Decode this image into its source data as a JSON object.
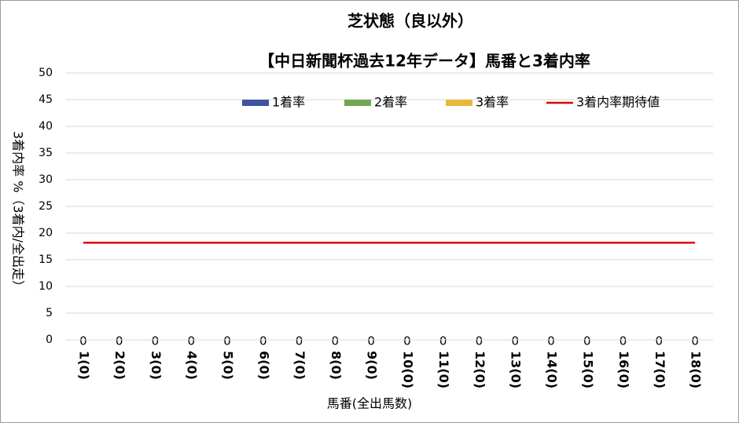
{
  "chart_data": {
    "type": "bar",
    "stacked": true,
    "title": "芝状態（良以外）",
    "subtitle": "【中日新聞杯過去12年データ】馬番と3着内率",
    "x_label": "馬番(全出馬数)",
    "y_label": "3着内率 %（3着内/全出走）",
    "categories": [
      "1(0)",
      "2(0)",
      "3(0)",
      "4(0)",
      "5(0)",
      "6(0)",
      "7(0)",
      "8(0)",
      "9(0)",
      "10(0)",
      "11(0)",
      "12(0)",
      "13(0)",
      "14(0)",
      "15(0)",
      "16(0)",
      "17(0)",
      "18(0)"
    ],
    "series": [
      {
        "name": "1着率",
        "color": "#3f51a3",
        "values": [
          0,
          0,
          0,
          0,
          0,
          0,
          0,
          0,
          0,
          0,
          0,
          0,
          0,
          0,
          0,
          0,
          0,
          0
        ]
      },
      {
        "name": "2着率",
        "color": "#70a850",
        "values": [
          0,
          0,
          0,
          0,
          0,
          0,
          0,
          0,
          0,
          0,
          0,
          0,
          0,
          0,
          0,
          0,
          0,
          0
        ]
      },
      {
        "name": "3着率",
        "color": "#e8b83a",
        "values": [
          0,
          0,
          0,
          0,
          0,
          0,
          0,
          0,
          0,
          0,
          0,
          0,
          0,
          0,
          0,
          0,
          0,
          0
        ]
      },
      {
        "name": "3着内率期待値",
        "color": "#e00000",
        "type": "line",
        "values": [
          18.2,
          18.2,
          18.2,
          18.2,
          18.2,
          18.2,
          18.2,
          18.2,
          18.2,
          18.2,
          18.2,
          18.2,
          18.2,
          18.2,
          18.2,
          18.2,
          18.2,
          18.2
        ]
      }
    ],
    "ylim": [
      0,
      50
    ],
    "yticks": [
      0,
      5,
      10,
      15,
      20,
      25,
      30,
      35,
      40,
      45,
      50
    ],
    "grid": true,
    "legend": "top-right"
  }
}
